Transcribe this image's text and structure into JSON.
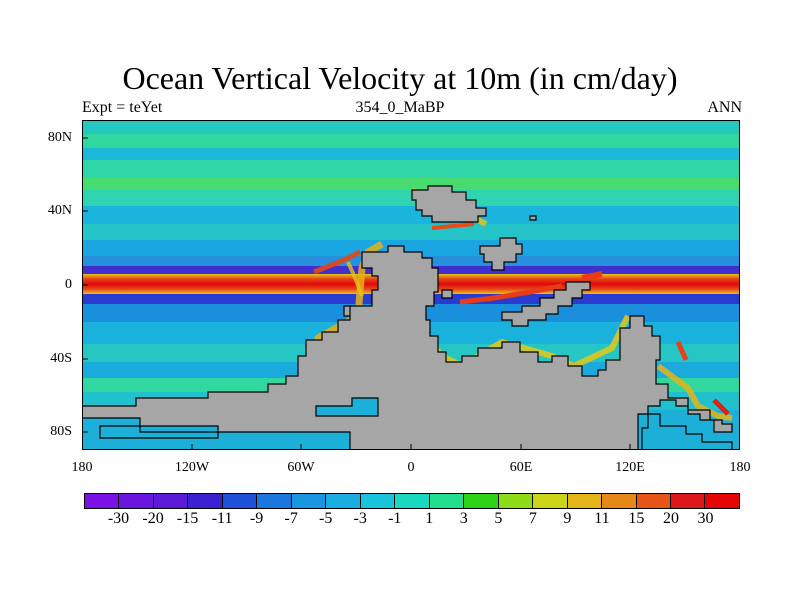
{
  "title": "Ocean Vertical Velocity at 10m (in cm/day)",
  "subtitle_left": "Expt = teYet",
  "subtitle_center": "354_0_MaBP",
  "subtitle_right": "ANN",
  "y_ticks": [
    "80N",
    "40N",
    "0",
    "40S",
    "80S"
  ],
  "x_ticks": [
    "180",
    "120W",
    "60W",
    "0",
    "60E",
    "120E",
    "180"
  ],
  "colorbar": {
    "labels": [
      "-30",
      "-20",
      "-15",
      "-11",
      "-9",
      "-7",
      "-5",
      "-3",
      "-1",
      "1",
      "3",
      "5",
      "7",
      "9",
      "11",
      "15",
      "20",
      "30"
    ],
    "colors": [
      "#7a12e8",
      "#6a16e0",
      "#5a1ad8",
      "#3a20d0",
      "#1e50d8",
      "#1a78dc",
      "#1a96e0",
      "#1aaee0",
      "#18c4dc",
      "#18d8c0",
      "#20e090",
      "#2ed218",
      "#8cdc18",
      "#ccd418",
      "#e4b418",
      "#e68818",
      "#e65418",
      "#dc1818",
      "#e40404"
    ]
  },
  "map_colors": {
    "background": "#2ad6b0",
    "land": "#a6a6a6",
    "coast": "#000000"
  }
}
